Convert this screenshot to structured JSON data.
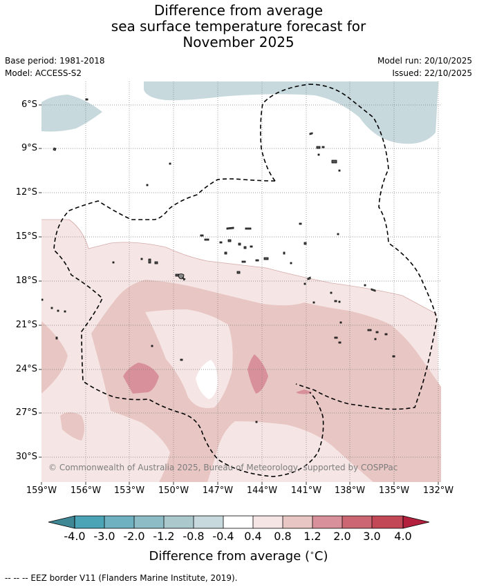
{
  "title": {
    "line1": "Difference from average",
    "line2": "sea surface temperature forecast for",
    "line3": "November 2025"
  },
  "info": {
    "base_period": "Base period: 1981-2018",
    "model": "Model: ACCESS-S2",
    "model_run": "Model run: 20/10/2025",
    "issued": "Issued: 22/10/2025"
  },
  "map": {
    "lat_labels": [
      "6°S",
      "9°S",
      "12°S",
      "15°S",
      "18°S",
      "21°S",
      "24°S",
      "27°S",
      "30°S"
    ],
    "lon_labels": [
      "159°W",
      "156°W",
      "153°W",
      "150°W",
      "147°W",
      "144°W",
      "141°W",
      "138°W",
      "135°W",
      "132°W"
    ],
    "copyright": "© Commonwealth of Australia 2025, Bureau of Meteorology, supported by COSPPac"
  },
  "colorbar": {
    "ticks": [
      "-4.0",
      "-3.0",
      "-2.0",
      "-1.2",
      "-0.8",
      "-0.4",
      "0.4",
      "0.8",
      "1.2",
      "2.0",
      "3.0",
      "4.0"
    ],
    "colors": [
      "#3f8794",
      "#4aa4b6",
      "#6fb1c0",
      "#8dbcc7",
      "#abc8cd",
      "#c7d9dd",
      "#ffffff",
      "#f5e6e5",
      "#e8c6c3",
      "#d8919a",
      "#cc6672",
      "#c24757",
      "#b3203e"
    ],
    "title_text": "Difference from average (",
    "title_unit": "°C",
    "title_close": ")"
  },
  "footer": {
    "legend_text": "--  --  -- EEZ border V11 (Flanders Marine Institute, 2019)."
  }
}
